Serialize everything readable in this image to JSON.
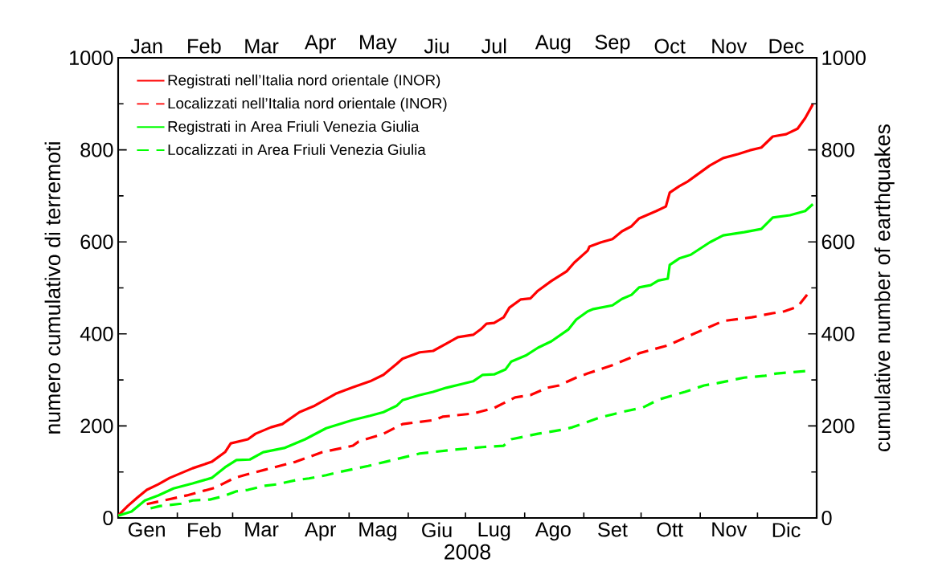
{
  "chart_data": {
    "type": "line",
    "xlabel": "2008",
    "ylabel": "numero cumulativo di terremoti",
    "y2label": "cumulative number of earthquakes",
    "legend": "top left",
    "xlim": [
      "2008-01-01",
      "2009-01-01"
    ],
    "ylim": [
      0,
      1000
    ],
    "y2lim": [
      0,
      1000
    ],
    "x2lim": [
      "2008-01-01",
      "2009-01-01"
    ],
    "xticks": [
      {
        "value": "2008-01-01",
        "label": null
      },
      {
        "value": "2008-01-16",
        "label": "Gen"
      },
      {
        "value": "2008-02-01",
        "label": null
      },
      {
        "value": "2008-02-15",
        "label": "Feb"
      },
      {
        "value": "2008-03-01",
        "label": null
      },
      {
        "value": "2008-03-16",
        "label": "Mar"
      },
      {
        "value": "2008-04-01",
        "label": null
      },
      {
        "value": "2008-04-16",
        "label": "Apr"
      },
      {
        "value": "2008-05-01",
        "label": null
      },
      {
        "value": "2008-05-16",
        "label": "Mag"
      },
      {
        "value": "2008-06-01",
        "label": null
      },
      {
        "value": "2008-06-16",
        "label": "Giu"
      },
      {
        "value": "2008-07-01",
        "label": null
      },
      {
        "value": "2008-07-16",
        "label": "Lug"
      },
      {
        "value": "2008-08-01",
        "label": null
      },
      {
        "value": "2008-08-16",
        "label": "Ago"
      },
      {
        "value": "2008-09-01",
        "label": null
      },
      {
        "value": "2008-09-16",
        "label": "Set"
      },
      {
        "value": "2008-10-01",
        "label": null
      },
      {
        "value": "2008-10-16",
        "label": "Ott"
      },
      {
        "value": "2008-11-01",
        "label": null
      },
      {
        "value": "2008-11-16",
        "label": "Nov"
      },
      {
        "value": "2008-12-01",
        "label": null
      },
      {
        "value": "2008-12-16",
        "label": "Dic"
      },
      {
        "value": "2009-01-01",
        "label": null
      }
    ],
    "x2ticks": [
      {
        "value": "2008-01-16",
        "label": "Jan"
      },
      {
        "value": "2008-02-15",
        "label": "Feb"
      },
      {
        "value": "2008-03-16",
        "label": "Mar"
      },
      {
        "value": "2008-04-16",
        "label": "Apr"
      },
      {
        "value": "2008-05-16",
        "label": "May"
      },
      {
        "value": "2008-06-16",
        "label": "Jiu"
      },
      {
        "value": "2008-07-16",
        "label": "Jul"
      },
      {
        "value": "2008-08-16",
        "label": "Aug"
      },
      {
        "value": "2008-09-16",
        "label": "Sep"
      },
      {
        "value": "2008-10-16",
        "label": "Oct"
      },
      {
        "value": "2008-11-16",
        "label": "Nov"
      },
      {
        "value": "2008-12-16",
        "label": "Dec"
      }
    ],
    "yticks": [
      0,
      {
        "value": 100,
        "label": null
      },
      200,
      {
        "value": 300,
        "label": null
      },
      400,
      {
        "value": 500,
        "label": null
      },
      600,
      {
        "value": 700,
        "label": null
      },
      800,
      {
        "value": 900,
        "label": null
      },
      1000
    ],
    "y2ticks": [
      0,
      {
        "value": 100,
        "label": null
      },
      200,
      {
        "value": 300,
        "label": null
      },
      400,
      {
        "value": 500,
        "label": null
      },
      600,
      {
        "value": 700,
        "label": null
      },
      800,
      {
        "value": 900,
        "label": null
      },
      1000
    ],
    "series": [
      {
        "name": "Registrati nell’Italia nord orientale (INOR)",
        "color": "#ff0000",
        "line_style": "solid",
        "x": [
          "2008-01-01",
          "2008-01-06",
          "2008-01-11",
          "2008-01-16",
          "2008-01-22",
          "2008-01-28",
          "2008-02-09",
          "2008-02-19",
          "2008-02-26",
          "2008-02-29",
          "2008-03-09",
          "2008-03-13",
          "2008-03-21",
          "2008-03-27",
          "2008-04-05",
          "2008-04-13",
          "2008-04-24",
          "2008-05-03",
          "2008-05-12",
          "2008-05-19",
          "2008-05-26",
          "2008-05-29",
          "2008-06-07",
          "2008-06-14",
          "2008-06-21",
          "2008-06-27",
          "2008-07-05",
          "2008-07-09",
          "2008-07-12",
          "2008-07-16",
          "2008-07-21",
          "2008-07-24",
          "2008-07-30",
          "2008-08-04",
          "2008-08-08",
          "2008-08-15",
          "2008-08-23",
          "2008-08-27",
          "2008-09-03",
          "2008-09-04",
          "2008-09-10",
          "2008-09-16",
          "2008-09-21",
          "2008-09-26",
          "2008-09-30",
          "2008-10-09",
          "2008-10-14",
          "2008-10-16",
          "2008-10-21",
          "2008-10-25",
          "2008-10-29",
          "2008-11-06",
          "2008-11-13",
          "2008-11-21",
          "2008-11-27",
          "2008-12-03",
          "2008-12-09",
          "2008-12-16",
          "2008-12-22",
          "2008-12-26",
          "2008-12-30"
        ],
        "values": [
          5,
          26,
          44,
          61,
          73,
          87,
          108,
          122,
          143,
          162,
          171,
          183,
          197,
          204,
          230,
          244,
          270,
          284,
          297,
          311,
          335,
          346,
          360,
          363,
          379,
          393,
          398,
          410,
          422,
          424,
          436,
          457,
          475,
          477,
          494,
          515,
          536,
          555,
          581,
          590,
          599,
          606,
          623,
          634,
          651,
          667,
          677,
          707,
          721,
          730,
          742,
          766,
          782,
          791,
          799,
          805,
          829,
          834,
          846,
          869,
          899
        ]
      },
      {
        "name": "Localizzati nell’Italia nord orientale (INOR)",
        "color": "#ff0000",
        "line_style": "dashed",
        "x": [
          "2008-01-16",
          "2008-02-06",
          "2008-02-21",
          "2008-03-02",
          "2008-03-07",
          "2008-03-18",
          "2008-04-03",
          "2008-04-17",
          "2008-05-03",
          "2008-05-06",
          "2008-05-19",
          "2008-05-29",
          "2008-06-15",
          "2008-06-19",
          "2008-07-05",
          "2008-07-16",
          "2008-07-27",
          "2008-08-04",
          "2008-08-13",
          "2008-08-19",
          "2008-08-28",
          "2008-09-03",
          "2008-09-16",
          "2008-09-26",
          "2008-09-30",
          "2008-10-15",
          "2008-10-29",
          "2008-11-13",
          "2008-11-28",
          "2008-12-09",
          "2008-12-15",
          "2008-12-22",
          "2008-12-27"
        ],
        "values": [
          30,
          49,
          66,
          87,
          93,
          105,
          122,
          143,
          157,
          166,
          183,
          204,
          213,
          220,
          227,
          239,
          262,
          267,
          283,
          288,
          305,
          314,
          332,
          349,
          358,
          375,
          401,
          428,
          436,
          445,
          449,
          459,
          485
        ]
      },
      {
        "name": "Registrati in Area Friuli Venezia Giulia",
        "color": "#00ff00",
        "line_style": "solid",
        "x": [
          "2008-01-01",
          "2008-01-08",
          "2008-01-15",
          "2008-01-22",
          "2008-01-30",
          "2008-02-09",
          "2008-02-19",
          "2008-02-26",
          "2008-03-03",
          "2008-03-10",
          "2008-03-17",
          "2008-03-28",
          "2008-04-08",
          "2008-04-19",
          "2008-05-03",
          "2008-05-12",
          "2008-05-19",
          "2008-05-26",
          "2008-05-29",
          "2008-06-07",
          "2008-06-14",
          "2008-06-21",
          "2008-06-29",
          "2008-07-05",
          "2008-07-10",
          "2008-07-16",
          "2008-07-22",
          "2008-07-25",
          "2008-08-02",
          "2008-08-08",
          "2008-08-15",
          "2008-08-24",
          "2008-08-28",
          "2008-09-03",
          "2008-09-06",
          "2008-09-16",
          "2008-09-21",
          "2008-09-26",
          "2008-09-30",
          "2008-10-06",
          "2008-10-10",
          "2008-10-15",
          "2008-10-16",
          "2008-10-21",
          "2008-10-27",
          "2008-11-06",
          "2008-11-13",
          "2008-11-24",
          "2008-12-03",
          "2008-12-09",
          "2008-12-18",
          "2008-12-26",
          "2008-12-30"
        ],
        "values": [
          5,
          14,
          38,
          49,
          64,
          75,
          87,
          110,
          126,
          127,
          143,
          152,
          171,
          195,
          213,
          222,
          230,
          244,
          256,
          267,
          274,
          283,
          291,
          297,
          311,
          312,
          323,
          340,
          354,
          370,
          384,
          410,
          431,
          449,
          454,
          462,
          476,
          485,
          501,
          506,
          516,
          520,
          550,
          564,
          572,
          599,
          614,
          621,
          628,
          653,
          658,
          667,
          682
        ]
      },
      {
        "name": "Localizzati in Area Friuli Venezia Giulia",
        "color": "#00ff00",
        "line_style": "dashed",
        "x": [
          "2008-01-18",
          "2008-01-23",
          "2008-02-03",
          "2008-02-09",
          "2008-02-18",
          "2008-02-25",
          "2008-03-03",
          "2008-03-09",
          "2008-03-18",
          "2008-03-24",
          "2008-04-03",
          "2008-04-10",
          "2008-04-19",
          "2008-04-25",
          "2008-05-11",
          "2008-05-20",
          "2008-06-07",
          "2008-06-24",
          "2008-07-10",
          "2008-07-21",
          "2008-07-25",
          "2008-08-08",
          "2008-08-21",
          "2008-08-26",
          "2008-09-09",
          "2008-09-23",
          "2008-10-02",
          "2008-10-10",
          "2008-10-24",
          "2008-11-03",
          "2008-11-10",
          "2008-11-24",
          "2008-12-05",
          "2008-12-11",
          "2008-12-26"
        ],
        "values": [
          21,
          26,
          31,
          38,
          40,
          47,
          58,
          61,
          70,
          73,
          82,
          86,
          93,
          99,
          113,
          122,
          140,
          148,
          154,
          157,
          171,
          183,
          192,
          197,
          218,
          232,
          240,
          257,
          274,
          288,
          293,
          305,
          309,
          314,
          319
        ]
      }
    ]
  }
}
